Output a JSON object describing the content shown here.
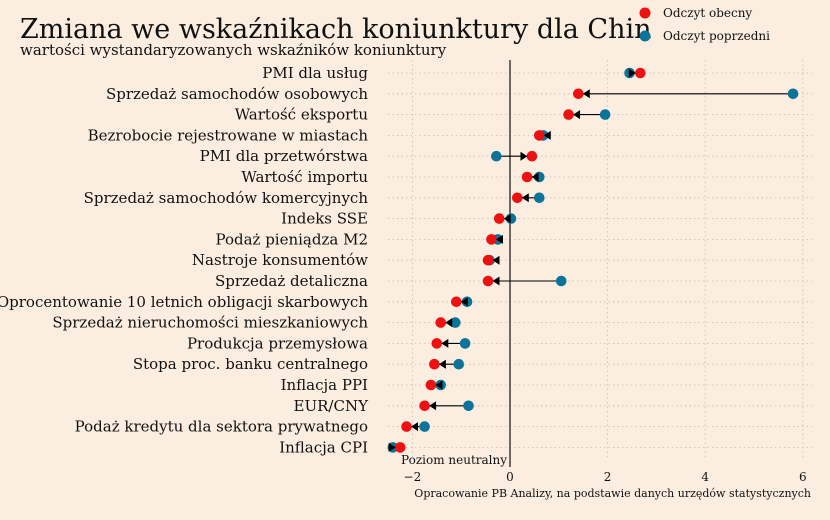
{
  "chart_data": {
    "type": "dot-arrow",
    "title": "Zmiana we wskaźnikach koniunktury dla Chin",
    "subtitle": "wartości wystandaryzowanych wskaźników koniunktury",
    "source": "Opracowanie PB Analizy, na podstawie danych urzędów statystycznych",
    "zero_label": "Poziom neutralny",
    "legend_position": "top-right",
    "grid": true,
    "xlim": [
      -2.5,
      6.1
    ],
    "xticks": [
      -2,
      0,
      2,
      4,
      6
    ],
    "series": [
      {
        "name": "Odczyt obecny",
        "color": "#ee1111",
        "key": "current"
      },
      {
        "name": "Odczyt poprzedni",
        "color": "#0e7398",
        "key": "previous"
      }
    ],
    "categories": [
      "PMI dla usług",
      "Sprzedaż samochodów osobowych",
      "Wartość eksportu",
      "Bezrobocie rejestrowane w miastach",
      "PMI dla przetwórstwa",
      "Wartość importu",
      "Sprzedaż samochodów komercyjnych",
      "Indeks SSE",
      "Podaż pieniądza M2",
      "Nastroje konsumentów",
      "Sprzedaż detaliczna",
      "Oprocentowanie 10 letnich obligacji skarbowych",
      "Sprzedaż nieruchomości mieszkaniowych",
      "Produkcja przemysłowa",
      "Stopa proc. banku centralnego",
      "Inflacja PPI",
      "EUR/CNY",
      "Podaż kredytu dla sektora prywatnego",
      "Inflacja CPI"
    ],
    "current": [
      2.67,
      1.4,
      1.2,
      0.6,
      0.45,
      0.35,
      0.15,
      -0.22,
      -0.38,
      -0.45,
      -0.45,
      -1.1,
      -1.42,
      -1.5,
      -1.55,
      -1.62,
      -1.75,
      -2.12,
      -2.25
    ],
    "previous": [
      2.45,
      5.8,
      1.95,
      0.68,
      -0.28,
      0.6,
      0.6,
      0.02,
      -0.25,
      -0.42,
      1.05,
      -0.88,
      -1.12,
      -0.92,
      -1.05,
      -1.42,
      -0.85,
      -1.75,
      -2.4
    ]
  }
}
